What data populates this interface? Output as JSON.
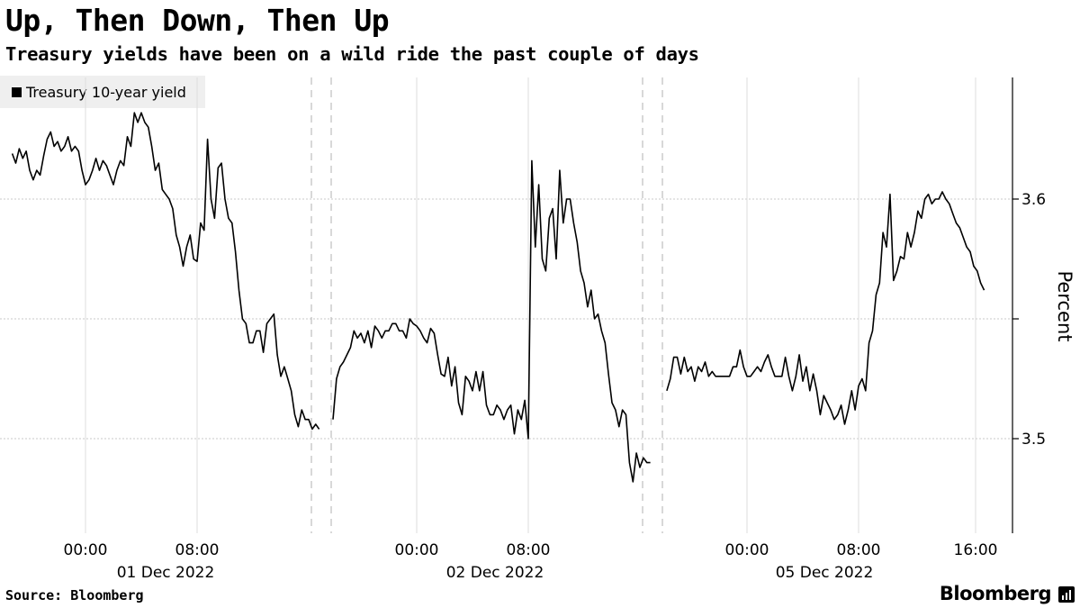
{
  "title": "Up, Then Down, Then Up",
  "subtitle": "Treasury yields have been on a wild ride the past couple of days",
  "source": "Source: Bloomberg",
  "brand": "Bloomberg",
  "chart_data": {
    "type": "line",
    "ylabel": "Percent",
    "yticks": [
      3.5,
      3.6
    ],
    "ylim": [
      3.468,
      3.651
    ],
    "grid": true,
    "legend_position": "top-left",
    "line_color": "#000000",
    "xtick_labels": [
      "00:00",
      "08:00",
      "00:00",
      "08:00",
      "00:00",
      "08:00",
      "16:00"
    ],
    "date_labels": [
      "01 Dec 2022",
      "02 Dec 2022",
      "05 Dec 2022"
    ],
    "series": [
      {
        "name": "Treasury 10-year yield",
        "segments": [
          {
            "session": "01 Dec 2022",
            "x": [
              "30 Nov 18:45",
              "30 Nov 19:00",
              "30 Nov 19:15",
              "30 Nov 19:30",
              "30 Nov 19:45",
              "30 Nov 20:00",
              "30 Nov 20:15",
              "30 Nov 20:30",
              "30 Nov 20:45",
              "30 Nov 21:00",
              "30 Nov 21:15",
              "30 Nov 21:30",
              "30 Nov 21:45",
              "30 Nov 22:00",
              "30 Nov 22:15",
              "30 Nov 22:30",
              "30 Nov 22:45",
              "30 Nov 23:00",
              "30 Nov 23:15",
              "30 Nov 23:30",
              "30 Nov 23:45",
              "01 Dec 00:00",
              "01 Dec 00:15",
              "01 Dec 00:30",
              "01 Dec 00:45",
              "01 Dec 01:00",
              "01 Dec 01:15",
              "01 Dec 01:30",
              "01 Dec 01:45",
              "01 Dec 02:00",
              "01 Dec 02:15",
              "01 Dec 02:30",
              "01 Dec 02:45",
              "01 Dec 03:00",
              "01 Dec 03:15",
              "01 Dec 03:30",
              "01 Dec 03:45",
              "01 Dec 04:00",
              "01 Dec 04:15",
              "01 Dec 04:30",
              "01 Dec 04:45",
              "01 Dec 05:00",
              "01 Dec 05:15",
              "01 Dec 05:30",
              "01 Dec 05:45",
              "01 Dec 06:00",
              "01 Dec 06:15",
              "01 Dec 06:30",
              "01 Dec 06:45",
              "01 Dec 07:00",
              "01 Dec 07:15",
              "01 Dec 07:30",
              "01 Dec 07:45",
              "01 Dec 08:00",
              "01 Dec 08:15",
              "01 Dec 08:30",
              "01 Dec 08:45",
              "01 Dec 09:00",
              "01 Dec 09:15",
              "01 Dec 09:30",
              "01 Dec 09:45",
              "01 Dec 10:00",
              "01 Dec 10:15",
              "01 Dec 10:30",
              "01 Dec 10:45",
              "01 Dec 11:00",
              "01 Dec 11:15",
              "01 Dec 11:30",
              "01 Dec 11:45",
              "01 Dec 12:00",
              "01 Dec 12:15",
              "01 Dec 12:30",
              "01 Dec 12:45",
              "01 Dec 13:00",
              "01 Dec 13:15",
              "01 Dec 13:30",
              "01 Dec 13:45",
              "01 Dec 14:00",
              "01 Dec 14:15",
              "01 Dec 14:30",
              "01 Dec 14:45",
              "01 Dec 15:00",
              "01 Dec 15:15",
              "01 Dec 15:30",
              "01 Dec 15:45",
              "01 Dec 16:00",
              "01 Dec 16:15",
              "01 Dec 16:30",
              "01 Dec 16:45"
            ],
            "y": [
              3.619,
              3.615,
              3.621,
              3.617,
              3.62,
              3.612,
              3.608,
              3.612,
              3.61,
              3.618,
              3.625,
              3.628,
              3.622,
              3.624,
              3.62,
              3.622,
              3.626,
              3.62,
              3.622,
              3.62,
              3.612,
              3.606,
              3.608,
              3.612,
              3.617,
              3.612,
              3.616,
              3.614,
              3.61,
              3.606,
              3.612,
              3.616,
              3.614,
              3.626,
              3.622,
              3.636,
              3.632,
              3.636,
              3.632,
              3.63,
              3.622,
              3.612,
              3.615,
              3.604,
              3.602,
              3.6,
              3.596,
              3.585,
              3.58,
              3.572,
              3.58,
              3.585,
              3.575,
              3.574,
              3.59,
              3.587,
              3.625,
              3.6,
              3.592,
              3.613,
              3.615,
              3.6,
              3.592,
              3.59,
              3.578,
              3.562,
              3.55,
              3.548,
              3.54,
              3.54,
              3.545,
              3.545,
              3.536,
              3.548,
              3.55,
              3.552,
              3.535,
              3.526,
              3.53,
              3.525,
              3.52,
              3.51,
              3.505,
              3.512,
              3.508,
              3.508,
              3.504,
              3.506,
              3.504
            ]
          },
          {
            "session": "02 Dec 2022",
            "x": [
              "01 Dec 18:00",
              "01 Dec 18:15",
              "01 Dec 18:30",
              "01 Dec 18:45",
              "01 Dec 19:00",
              "01 Dec 19:15",
              "01 Dec 19:30",
              "01 Dec 19:45",
              "01 Dec 20:00",
              "01 Dec 20:15",
              "01 Dec 20:30",
              "01 Dec 20:45",
              "01 Dec 21:00",
              "01 Dec 21:15",
              "01 Dec 21:30",
              "01 Dec 21:45",
              "01 Dec 22:00",
              "01 Dec 22:15",
              "01 Dec 22:30",
              "01 Dec 22:45",
              "01 Dec 23:00",
              "01 Dec 23:15",
              "01 Dec 23:30",
              "01 Dec 23:45",
              "02 Dec 00:00",
              "02 Dec 00:15",
              "02 Dec 00:30",
              "02 Dec 00:45",
              "02 Dec 01:00",
              "02 Dec 01:15",
              "02 Dec 01:30",
              "02 Dec 01:45",
              "02 Dec 02:00",
              "02 Dec 02:15",
              "02 Dec 02:30",
              "02 Dec 02:45",
              "02 Dec 03:00",
              "02 Dec 03:15",
              "02 Dec 03:30",
              "02 Dec 03:45",
              "02 Dec 04:00",
              "02 Dec 04:15",
              "02 Dec 04:30",
              "02 Dec 04:45",
              "02 Dec 05:00",
              "02 Dec 05:15",
              "02 Dec 05:30",
              "02 Dec 05:45",
              "02 Dec 06:00",
              "02 Dec 06:15",
              "02 Dec 06:30",
              "02 Dec 06:45",
              "02 Dec 07:00",
              "02 Dec 07:15",
              "02 Dec 07:30",
              "02 Dec 07:45",
              "02 Dec 08:00",
              "02 Dec 08:15",
              "02 Dec 08:30",
              "02 Dec 08:45",
              "02 Dec 09:00",
              "02 Dec 09:15",
              "02 Dec 09:30",
              "02 Dec 09:45",
              "02 Dec 10:00",
              "02 Dec 10:15",
              "02 Dec 10:30",
              "02 Dec 10:45",
              "02 Dec 11:00",
              "02 Dec 11:15",
              "02 Dec 11:30",
              "02 Dec 11:45",
              "02 Dec 12:00",
              "02 Dec 12:15",
              "02 Dec 12:30",
              "02 Dec 12:45",
              "02 Dec 13:00",
              "02 Dec 13:15",
              "02 Dec 13:30",
              "02 Dec 13:45",
              "02 Dec 14:00",
              "02 Dec 14:15",
              "02 Dec 14:30",
              "02 Dec 14:45",
              "02 Dec 15:00",
              "02 Dec 15:15",
              "02 Dec 15:30",
              "02 Dec 15:45",
              "02 Dec 16:00",
              "02 Dec 16:15",
              "02 Dec 16:30",
              "02 Dec 16:45"
            ],
            "y": [
              3.508,
              3.525,
              3.53,
              3.532,
              3.535,
              3.538,
              3.545,
              3.542,
              3.544,
              3.54,
              3.545,
              3.538,
              3.547,
              3.545,
              3.542,
              3.545,
              3.545,
              3.548,
              3.548,
              3.545,
              3.545,
              3.542,
              3.55,
              3.548,
              3.547,
              3.545,
              3.542,
              3.54,
              3.546,
              3.544,
              3.535,
              3.527,
              3.526,
              3.534,
              3.522,
              3.53,
              3.515,
              3.51,
              3.526,
              3.524,
              3.52,
              3.528,
              3.52,
              3.528,
              3.514,
              3.51,
              3.51,
              3.514,
              3.512,
              3.508,
              3.512,
              3.514,
              3.502,
              3.512,
              3.508,
              3.516,
              3.5,
              3.616,
              3.58,
              3.606,
              3.575,
              3.57,
              3.592,
              3.596,
              3.575,
              3.612,
              3.59,
              3.6,
              3.6,
              3.59,
              3.582,
              3.57,
              3.565,
              3.555,
              3.562,
              3.55,
              3.552,
              3.545,
              3.54,
              3.527,
              3.515,
              3.512,
              3.505,
              3.512,
              3.51,
              3.49,
              3.482,
              3.494,
              3.488,
              3.492,
              3.49,
              3.49
            ]
          },
          {
            "session": "05 Dec 2022",
            "x": [
              "04 Dec 18:15",
              "04 Dec 18:30",
              "04 Dec 18:45",
              "04 Dec 19:00",
              "04 Dec 19:15",
              "04 Dec 19:30",
              "04 Dec 19:45",
              "04 Dec 20:00",
              "04 Dec 20:15",
              "04 Dec 20:30",
              "04 Dec 20:45",
              "04 Dec 21:00",
              "04 Dec 21:15",
              "04 Dec 21:30",
              "04 Dec 21:45",
              "04 Dec 22:00",
              "04 Dec 22:15",
              "04 Dec 22:30",
              "04 Dec 22:45",
              "04 Dec 23:00",
              "04 Dec 23:15",
              "04 Dec 23:30",
              "04 Dec 23:45",
              "05 Dec 00:00",
              "05 Dec 00:15",
              "05 Dec 00:30",
              "05 Dec 00:45",
              "05 Dec 01:00",
              "05 Dec 01:15",
              "05 Dec 01:30",
              "05 Dec 01:45",
              "05 Dec 02:00",
              "05 Dec 02:15",
              "05 Dec 02:30",
              "05 Dec 02:45",
              "05 Dec 03:00",
              "05 Dec 03:15",
              "05 Dec 03:30",
              "05 Dec 03:45",
              "05 Dec 04:00",
              "05 Dec 04:15",
              "05 Dec 04:30",
              "05 Dec 04:45",
              "05 Dec 05:00",
              "05 Dec 05:15",
              "05 Dec 05:30",
              "05 Dec 05:45",
              "05 Dec 06:00",
              "05 Dec 06:15",
              "05 Dec 06:30",
              "05 Dec 06:45",
              "05 Dec 07:00",
              "05 Dec 07:15",
              "05 Dec 07:30",
              "05 Dec 07:45",
              "05 Dec 08:00",
              "05 Dec 08:15",
              "05 Dec 08:30",
              "05 Dec 08:45",
              "05 Dec 09:00",
              "05 Dec 09:15",
              "05 Dec 09:30",
              "05 Dec 09:45",
              "05 Dec 10:00",
              "05 Dec 10:15",
              "05 Dec 10:30",
              "05 Dec 10:45",
              "05 Dec 11:00",
              "05 Dec 11:15",
              "05 Dec 11:30",
              "05 Dec 11:45",
              "05 Dec 12:00",
              "05 Dec 12:15",
              "05 Dec 12:30",
              "05 Dec 12:45",
              "05 Dec 13:00",
              "05 Dec 13:15",
              "05 Dec 13:30",
              "05 Dec 13:45",
              "05 Dec 14:00",
              "05 Dec 14:15",
              "05 Dec 14:30",
              "05 Dec 14:45",
              "05 Dec 15:00",
              "05 Dec 15:15",
              "05 Dec 15:30",
              "05 Dec 15:45",
              "05 Dec 16:00",
              "05 Dec 16:15",
              "05 Dec 16:30",
              "05 Dec 16:45",
              "05 Dec 17:00"
            ],
            "y": [
              3.52,
              3.525,
              3.534,
              3.534,
              3.527,
              3.534,
              3.528,
              3.53,
              3.524,
              3.53,
              3.528,
              3.532,
              3.526,
              3.528,
              3.526,
              3.526,
              3.526,
              3.526,
              3.526,
              3.53,
              3.53,
              3.537,
              3.53,
              3.526,
              3.526,
              3.528,
              3.53,
              3.528,
              3.532,
              3.535,
              3.53,
              3.526,
              3.526,
              3.526,
              3.534,
              3.526,
              3.52,
              3.526,
              3.535,
              3.524,
              3.53,
              3.52,
              3.527,
              3.52,
              3.51,
              3.518,
              3.515,
              3.512,
              3.508,
              3.51,
              3.514,
              3.506,
              3.512,
              3.52,
              3.512,
              3.522,
              3.525,
              3.52,
              3.54,
              3.545,
              3.56,
              3.565,
              3.586,
              3.58,
              3.602,
              3.566,
              3.57,
              3.576,
              3.575,
              3.586,
              3.58,
              3.586,
              3.595,
              3.592,
              3.6,
              3.602,
              3.598,
              3.6,
              3.6,
              3.603,
              3.6,
              3.598,
              3.594,
              3.59,
              3.588,
              3.584,
              3.58,
              3.578,
              3.572,
              3.57,
              3.565,
              3.562
            ]
          }
        ]
      }
    ]
  }
}
